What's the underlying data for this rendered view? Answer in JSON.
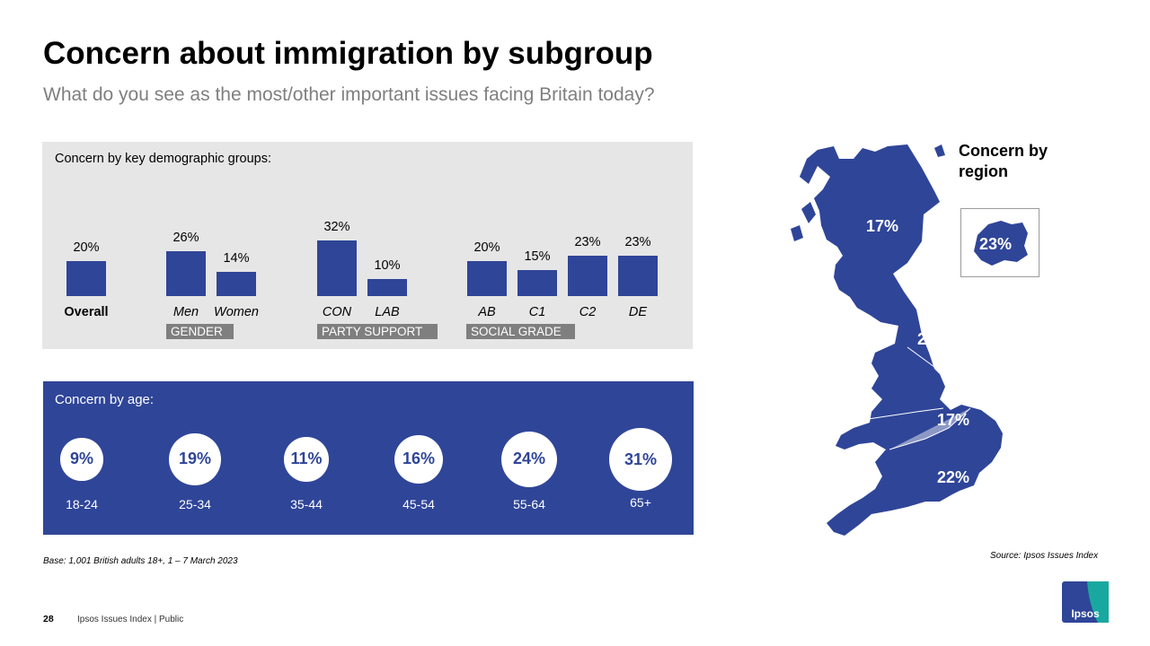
{
  "title": "Concern about immigration by subgroup",
  "subtitle": "What do you see as the most/other important issues facing Britain today?",
  "colors": {
    "bar": "#2f4598",
    "panel": "#e6e6e6",
    "group_label": "#7f7f7f",
    "accent": "#2f4598"
  },
  "chart_data": [
    {
      "type": "bar",
      "title": "Concern by key demographic  groups:",
      "categories": [
        "Overall",
        "Men",
        "Women",
        "CON",
        "LAB",
        "AB",
        "C1",
        "C2",
        "DE"
      ],
      "values": [
        20,
        26,
        14,
        32,
        10,
        20,
        15,
        23,
        23
      ],
      "value_labels": [
        "20%",
        "26%",
        "14%",
        "32%",
        "10%",
        "20%",
        "15%",
        "23%",
        "23%"
      ],
      "groups": [
        "GENDER",
        "PARTY SUPPORT",
        "SOCIAL GRADE"
      ],
      "ylim": [
        0,
        32
      ]
    },
    {
      "type": "bubble",
      "title": "Concern by age:",
      "categories": [
        "18-24",
        "25-34",
        "35-44",
        "45-54",
        "55-64",
        "65+"
      ],
      "values": [
        9,
        19,
        11,
        16,
        24,
        31
      ],
      "value_labels": [
        "9%",
        "19%",
        "11%",
        "16%",
        "24%",
        "31%"
      ]
    },
    {
      "type": "map",
      "title": "Concern by\nregion",
      "regions": [
        {
          "label": "17%",
          "value": 17,
          "region": "Scotland"
        },
        {
          "label": "20%",
          "value": 20,
          "region": "North"
        },
        {
          "label": "17%",
          "value": 17,
          "region": "Midlands"
        },
        {
          "label": "22%",
          "value": 22,
          "region": "South"
        },
        {
          "label": "23%",
          "value": 23,
          "region": "London"
        }
      ]
    }
  ],
  "footer": {
    "base": "Base: 1,001 British adults 18+, 1 – 7 March 2023",
    "source": "Source: Ipsos Issues Index",
    "page": "28",
    "text": "Ipsos Issues Index | Public",
    "logo": "Ipsos"
  },
  "icons": {
    "logo": "ipsos-logo-icon",
    "map": "uk-map-icon",
    "london": "london-map-icon"
  }
}
